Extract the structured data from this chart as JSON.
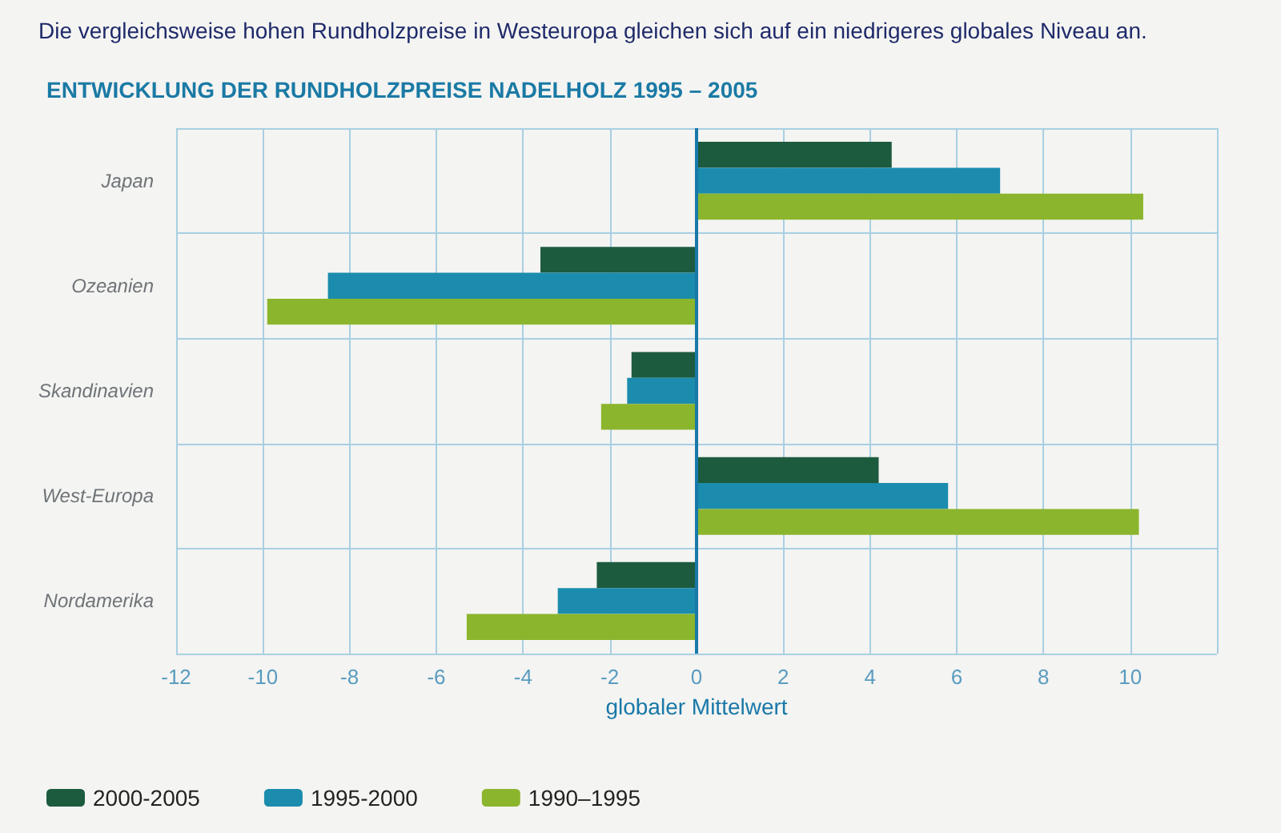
{
  "chart_data": {
    "type": "bar",
    "orientation": "horizontal",
    "title": "ENTWICKLUNG DER RUNDHOLZPREISE NADELHOLZ 1995 – 2005",
    "annotations": [
      "Die vergleichsweise hohen Rundholzpreise in Westeuropa gleichen sich auf ein niedrigeres globales Niveau an."
    ],
    "categories": [
      "Japan",
      "Ozeanien",
      "Skandinavien",
      "West-Europa",
      "Nordamerika"
    ],
    "series": [
      {
        "name": "2000-2005",
        "color": "#1d5b3f",
        "values": [
          4.5,
          -3.6,
          -1.5,
          4.2,
          -2.3
        ]
      },
      {
        "name": "1995-2000",
        "color": "#1b8cad",
        "values": [
          7.0,
          -8.5,
          -1.6,
          5.8,
          -3.2
        ]
      },
      {
        "name": "1990–1995",
        "color": "#8bb52d",
        "values": [
          10.3,
          -9.9,
          -2.2,
          10.2,
          -5.3
        ]
      }
    ],
    "xlim": [
      -12,
      12
    ],
    "xticks": [
      -12,
      -10,
      -8,
      -6,
      -4,
      -2,
      0,
      2,
      4,
      6,
      8,
      10,
      {
        "value": 12,
        "label": null
      }
    ],
    "grid": true,
    "legend": "bottom left",
    "ref_lines": [
      {
        "axis": "x",
        "value": 0,
        "label": "globaler Mittelwert",
        "color": "#1878a8"
      }
    ]
  }
}
